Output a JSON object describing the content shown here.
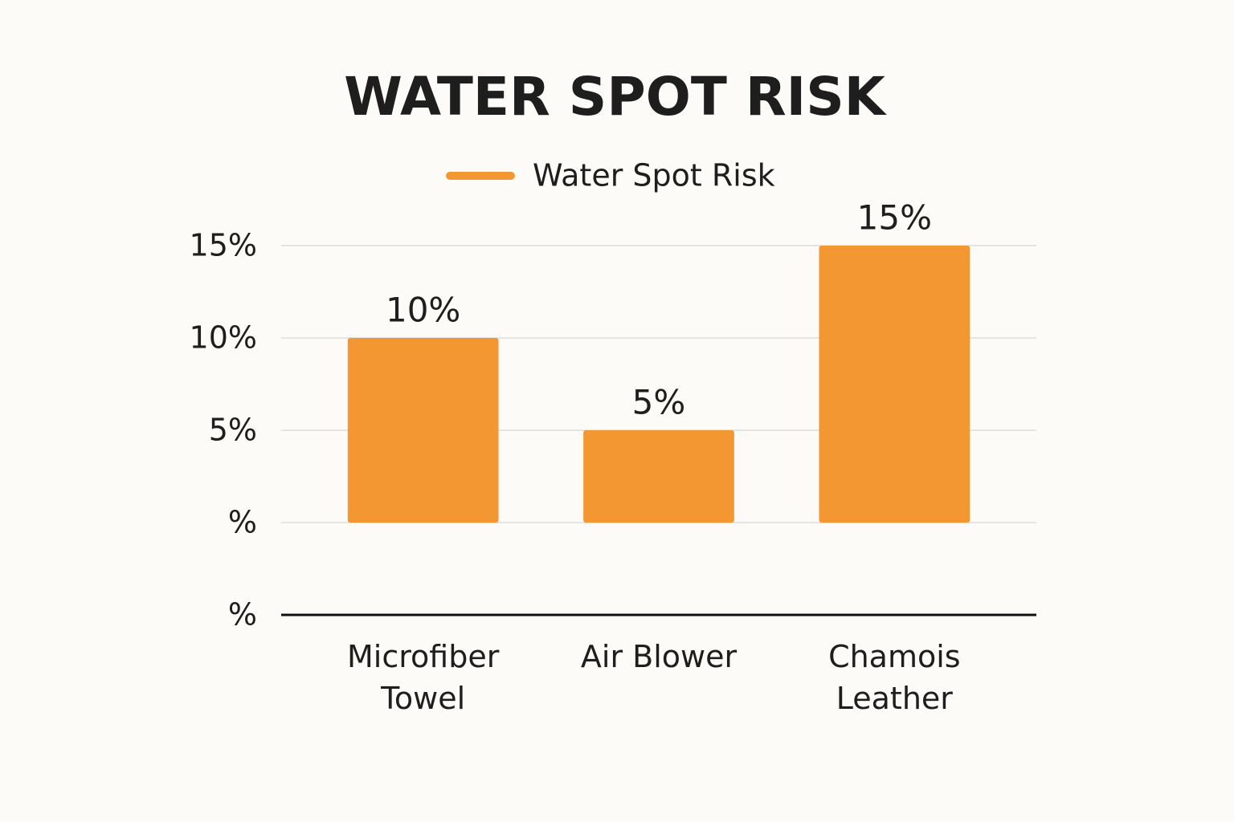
{
  "chart_data": {
    "type": "bar",
    "title": "WATER SPOT RISK",
    "categories": [
      "Microfiber Towel",
      "Air Blower",
      "Chamois Leather"
    ],
    "series": [
      {
        "name": "Water Spot Risk",
        "color": "#f39733",
        "values": [
          10,
          5,
          15
        ],
        "value_labels": [
          "10%",
          "5%",
          "15%"
        ]
      }
    ],
    "ylim": [
      -5,
      15
    ],
    "yticks": [
      {
        "value": -5,
        "label": "%"
      },
      {
        "value": 0,
        "label": "%"
      },
      {
        "value": 5,
        "label": "5%"
      },
      {
        "value": 10,
        "label": "10%"
      },
      {
        "value": 15,
        "label": "15%"
      }
    ],
    "grid": true,
    "legend": "top"
  }
}
